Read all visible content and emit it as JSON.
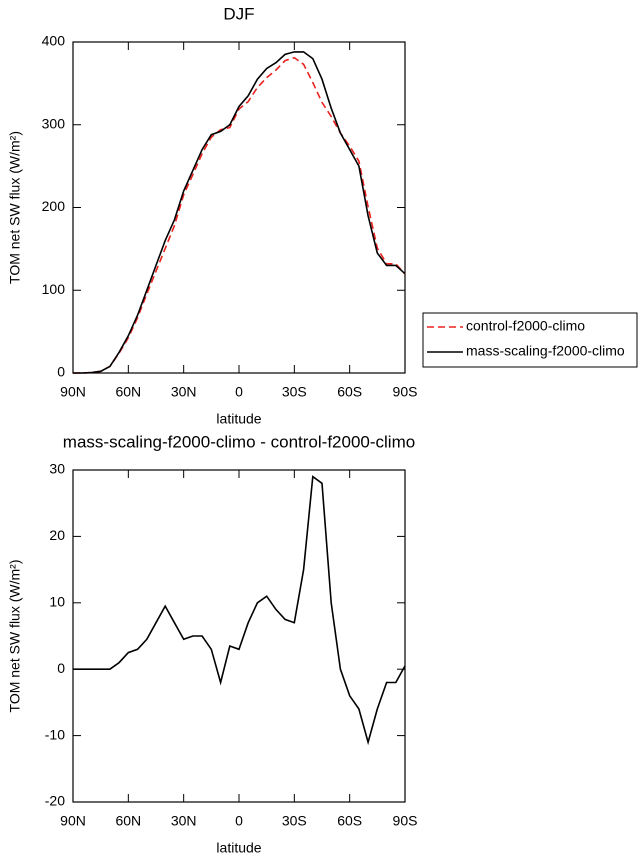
{
  "chart_data": [
    {
      "type": "line",
      "title": "DJF",
      "xlabel": "latitude",
      "ylabel": "TOM net SW flux (W/m²)",
      "x": [
        90,
        85,
        80,
        75,
        70,
        65,
        60,
        55,
        50,
        45,
        40,
        35,
        30,
        25,
        20,
        15,
        10,
        5,
        0,
        -5,
        -10,
        -15,
        -20,
        -25,
        -30,
        -35,
        -40,
        -45,
        -50,
        -55,
        -60,
        -65,
        -70,
        -75,
        -80,
        -85,
        -90
      ],
      "series": [
        {
          "name": "control-f2000-climo",
          "color": "#e8231f",
          "line_style": "dashed",
          "values": [
            0,
            0,
            0.5,
            2,
            8,
            24,
            42.5,
            67,
            95.5,
            123,
            150.5,
            178,
            215.5,
            240,
            265,
            285,
            294,
            296.5,
            319,
            328,
            345,
            357,
            366,
            377.5,
            381,
            373,
            351,
            327,
            310,
            290,
            274,
            256,
            201,
            151,
            132,
            132,
            119.5
          ]
        },
        {
          "name": "mass-scaling-f2000-climo",
          "color": "#000000",
          "line_style": "solid",
          "values": [
            0,
            0,
            0.5,
            2,
            8,
            25,
            45,
            70,
            100,
            130,
            160,
            185,
            220,
            245,
            270,
            288,
            292,
            300,
            322,
            335,
            355,
            368,
            375,
            385,
            388,
            388,
            380,
            355,
            320,
            290,
            270,
            250,
            190,
            145,
            130,
            130,
            120
          ]
        }
      ],
      "xlim": [
        90,
        -90
      ],
      "xticks": [
        {
          "value": 90,
          "label": "90N"
        },
        {
          "value": 60,
          "label": "60N"
        },
        {
          "value": 30,
          "label": "30N"
        },
        0,
        {
          "value": -30,
          "label": "30S"
        },
        {
          "value": -60,
          "label": "60S"
        },
        {
          "value": -90,
          "label": "90S"
        }
      ],
      "ylim": [
        0,
        400
      ],
      "yticks": [
        0,
        100,
        200,
        300,
        400
      ],
      "legend": "right"
    },
    {
      "type": "line",
      "title": "mass-scaling-f2000-climo - control-f2000-climo",
      "xlabel": "latitude",
      "ylabel": "TOM net SW flux (W/m²)",
      "x": [
        90,
        85,
        80,
        75,
        70,
        65,
        60,
        55,
        50,
        45,
        40,
        35,
        30,
        25,
        20,
        15,
        10,
        5,
        0,
        -5,
        -10,
        -15,
        -20,
        -25,
        -30,
        -35,
        -40,
        -45,
        -50,
        -55,
        -60,
        -65,
        -70,
        -75,
        -80,
        -85,
        -90
      ],
      "color": "#000000",
      "values": [
        0,
        0,
        0,
        0,
        0,
        1,
        2.5,
        3,
        4.5,
        7,
        9.5,
        7,
        4.5,
        5,
        5,
        3,
        -2,
        3.5,
        3,
        7,
        10,
        11,
        9,
        7.5,
        7,
        15,
        29,
        28,
        10,
        0,
        -4,
        -6,
        -11,
        -6,
        -2,
        -2,
        0.5
      ],
      "xlim": [
        90,
        -90
      ],
      "xticks": [
        {
          "value": 90,
          "label": "90N"
        },
        {
          "value": 60,
          "label": "60N"
        },
        {
          "value": 30,
          "label": "30N"
        },
        0,
        {
          "value": -30,
          "label": "30S"
        },
        {
          "value": -60,
          "label": "60S"
        },
        {
          "value": -90,
          "label": "90S"
        }
      ],
      "ylim": [
        -20,
        30
      ],
      "yticks": [
        -20,
        -10,
        0,
        10,
        20,
        30
      ]
    }
  ]
}
